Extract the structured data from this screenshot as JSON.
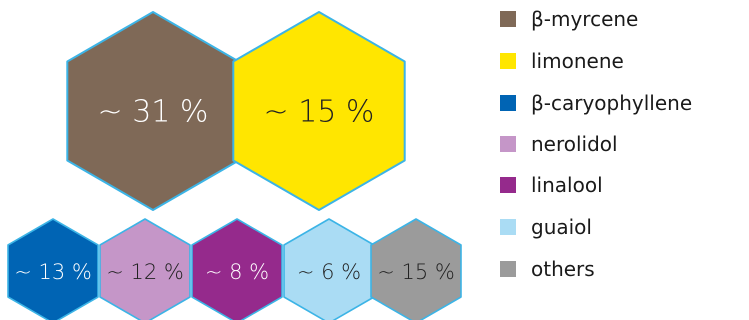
{
  "chart_data": {
    "type": "hexagon-proportion",
    "series": [
      {
        "name": "β-myrcene",
        "value": 31,
        "label": "~ 31 %",
        "color": "#7f6957",
        "text_color": "#ffffff"
      },
      {
        "name": "limonene",
        "value": 15,
        "label": "~ 15 %",
        "color": "#ffe600",
        "text_color": "#222222"
      },
      {
        "name": "β-caryophyllene",
        "value": 13,
        "label": "~ 13 %",
        "color": "#0064b4",
        "text_color": "#ffffff"
      },
      {
        "name": "nerolidol",
        "value": 12,
        "label": "~ 12 %",
        "color": "#c596c8",
        "text_color": "#222222"
      },
      {
        "name": "linalool",
        "value": 8,
        "label": "~ 8 %",
        "color": "#952a8c",
        "text_color": "#ffffff"
      },
      {
        "name": "guaiol",
        "value": 6,
        "label": "~ 6 %",
        "color": "#aadcf4",
        "text_color": "#222222"
      },
      {
        "name": "others",
        "value": 15,
        "label": "~ 15 %",
        "color": "#9b9b9b",
        "text_color": "#222222"
      }
    ],
    "outline_color": "#3cb4e6"
  }
}
